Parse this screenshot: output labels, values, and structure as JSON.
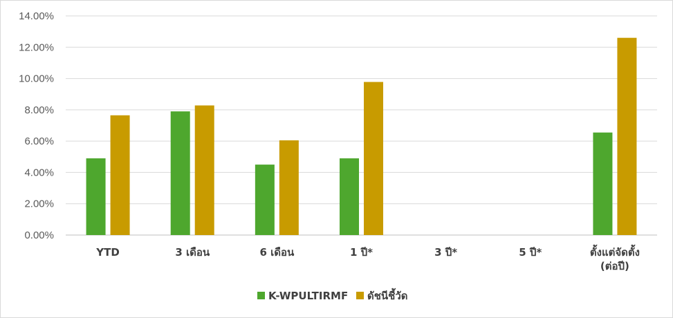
{
  "chart_data": {
    "type": "bar",
    "categories": [
      [
        "YTD"
      ],
      [
        "3 เดือน"
      ],
      [
        "6 เดือน"
      ],
      [
        "1 ปี*"
      ],
      [
        "3 ปี*"
      ],
      [
        "5 ปี*"
      ],
      [
        "ตั้งแต่จัดตั้ง",
        "(ต่อปี)"
      ]
    ],
    "series": [
      {
        "name": "K-WPULTIRMF",
        "color": "#4ea72e",
        "values": [
          4.9,
          7.9,
          4.5,
          4.9,
          null,
          null,
          6.55
        ]
      },
      {
        "name": "ดัชนีชี้วัด",
        "color": "#c89b00",
        "values": [
          7.65,
          8.28,
          6.05,
          9.78,
          null,
          null,
          12.6
        ]
      }
    ],
    "y_ticks": [
      "0.00%",
      "2.00%",
      "4.00%",
      "6.00%",
      "8.00%",
      "10.00%",
      "12.00%",
      "14.00%"
    ],
    "ylim": [
      0,
      14
    ],
    "grid": true,
    "legend_position": "bottom",
    "title": "",
    "xlabel": "",
    "ylabel": ""
  }
}
